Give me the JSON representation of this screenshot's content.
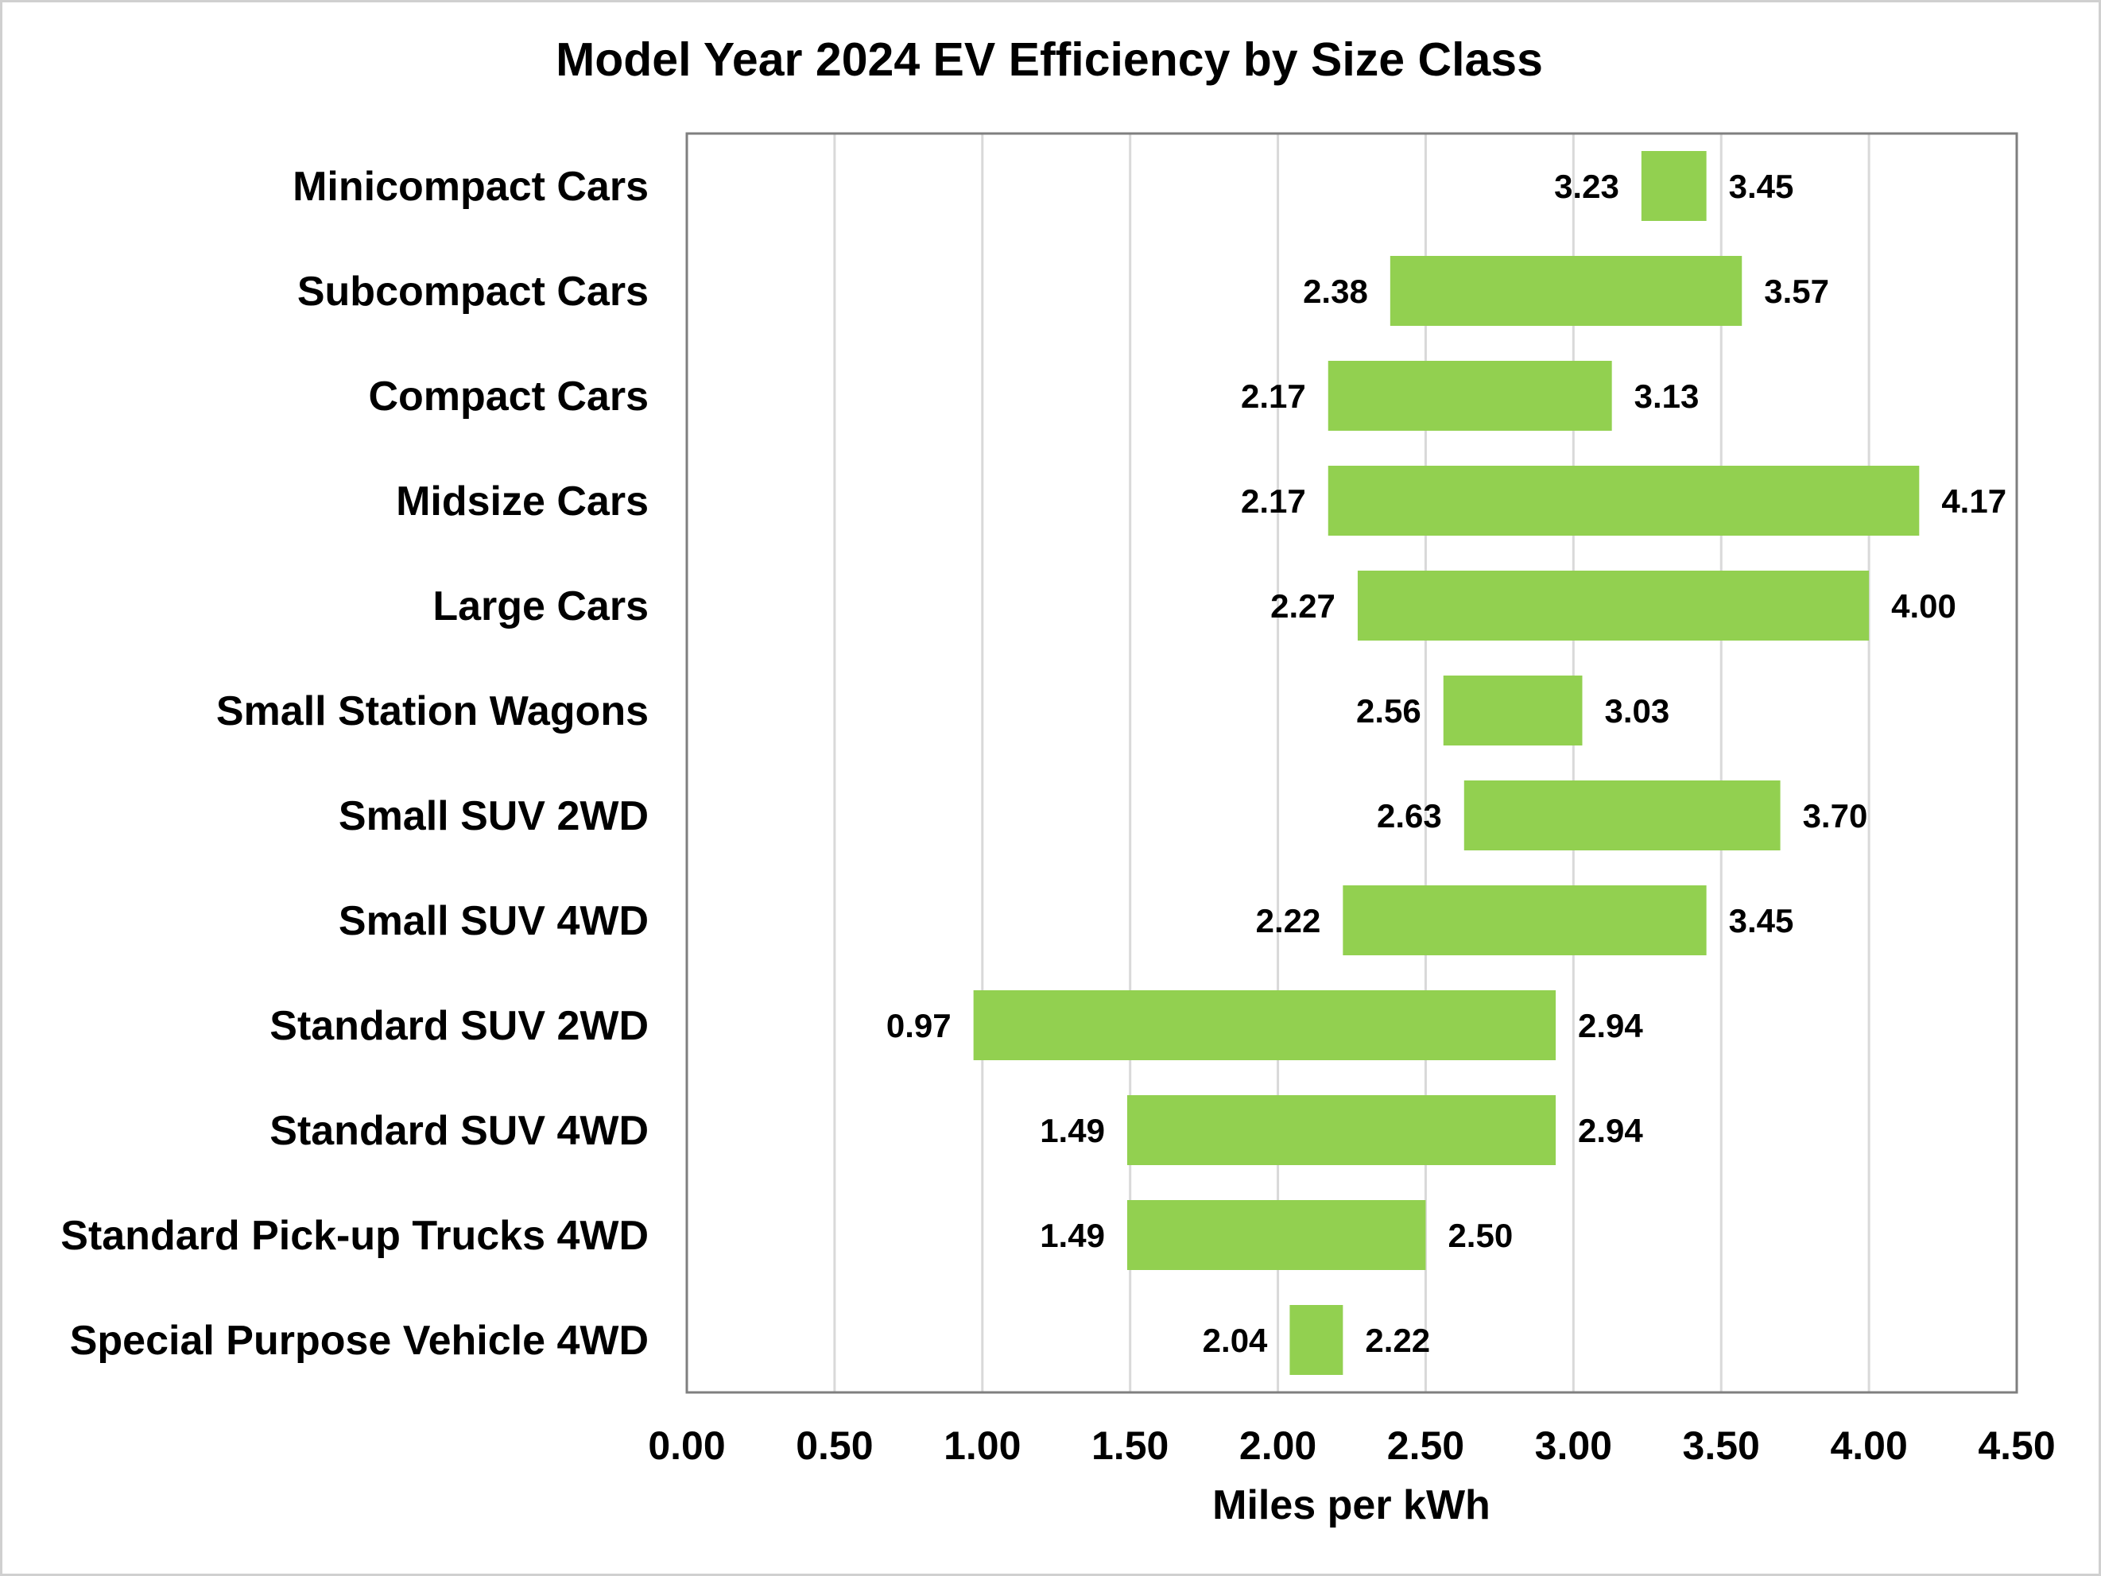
{
  "chart_data": {
    "type": "bar",
    "orientation": "horizontal",
    "subtype": "floating-range",
    "title": "Model Year 2024 EV Efficiency by Size Class",
    "xlabel": "Miles per kWh",
    "ylabel": "",
    "xlim": [
      0,
      4.5
    ],
    "x_ticks": [
      0,
      0.5,
      1.0,
      1.5,
      2.0,
      2.5,
      3.0,
      3.5,
      4.0,
      4.5
    ],
    "x_tick_labels": [
      "0.00",
      "0.50",
      "1.00",
      "1.50",
      "2.00",
      "2.50",
      "3.00",
      "3.50",
      "4.00",
      "4.50"
    ],
    "grid": "vertical",
    "bar_color": "#92d050",
    "categories": [
      "Minicompact Cars",
      "Subcompact Cars",
      "Compact Cars",
      "Midsize Cars",
      "Large Cars",
      "Small Station Wagons",
      "Small SUV 2WD",
      "Small SUV 4WD",
      "Standard SUV 2WD",
      "Standard SUV 4WD",
      "Standard Pick-up Trucks 4WD",
      "Special Purpose Vehicle 4WD"
    ],
    "min_values": [
      3.23,
      2.38,
      2.17,
      2.17,
      2.27,
      2.56,
      2.63,
      2.22,
      0.97,
      1.49,
      1.49,
      2.04
    ],
    "max_values": [
      3.45,
      3.57,
      3.13,
      4.17,
      4.0,
      3.03,
      3.7,
      3.45,
      2.94,
      2.94,
      2.5,
      2.22
    ],
    "min_labels": [
      "3.23",
      "2.38",
      "2.17",
      "2.17",
      "2.27",
      "2.56",
      "2.63",
      "2.22",
      "0.97",
      "1.49",
      "1.49",
      "2.04"
    ],
    "max_labels": [
      "3.45",
      "3.57",
      "3.13",
      "4.17",
      "4.00",
      "3.03",
      "3.70",
      "3.45",
      "2.94",
      "2.94",
      "2.50",
      "2.22"
    ]
  }
}
